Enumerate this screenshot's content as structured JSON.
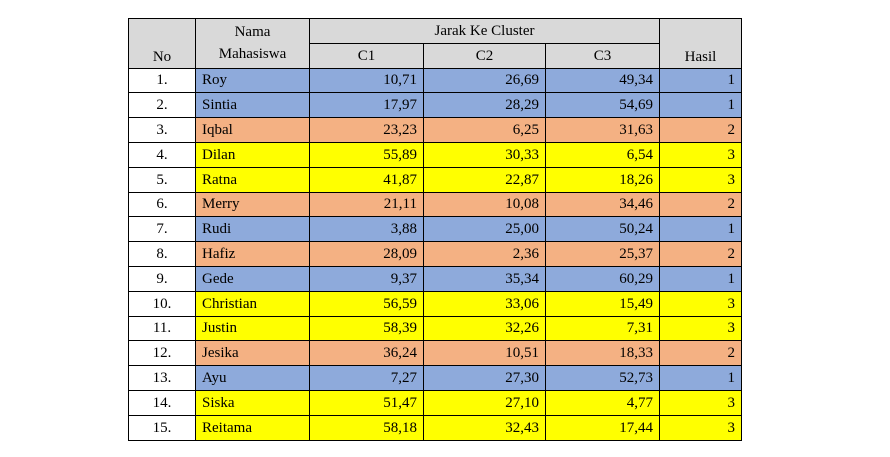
{
  "headers": {
    "no": "No",
    "nama_line1": "Nama",
    "nama_line2": "Mahasiswa",
    "group": "Jarak Ke Cluster",
    "c1": "C1",
    "c2": "C2",
    "c3": "C3",
    "hasil": "Hasil"
  },
  "cluster_colors": {
    "1": "#8eaadb",
    "2": "#f4b183",
    "3": "#ffff00"
  },
  "rows": [
    {
      "no": "1.",
      "nama": "Roy",
      "c1": "10,71",
      "c2": "26,69",
      "c3": "49,34",
      "hasil": "1"
    },
    {
      "no": "2.",
      "nama": "Sintia",
      "c1": "17,97",
      "c2": "28,29",
      "c3": "54,69",
      "hasil": "1"
    },
    {
      "no": "3.",
      "nama": "Iqbal",
      "c1": "23,23",
      "c2": "6,25",
      "c3": "31,63",
      "hasil": "2"
    },
    {
      "no": "4.",
      "nama": "Dilan",
      "c1": "55,89",
      "c2": "30,33",
      "c3": "6,54",
      "hasil": "3"
    },
    {
      "no": "5.",
      "nama": "Ratna",
      "c1": "41,87",
      "c2": "22,87",
      "c3": "18,26",
      "hasil": "3"
    },
    {
      "no": "6.",
      "nama": "Merry",
      "c1": "21,11",
      "c2": "10,08",
      "c3": "34,46",
      "hasil": "2"
    },
    {
      "no": "7.",
      "nama": "Rudi",
      "c1": "3,88",
      "c2": "25,00",
      "c3": "50,24",
      "hasil": "1"
    },
    {
      "no": "8.",
      "nama": "Hafiz",
      "c1": "28,09",
      "c2": "2,36",
      "c3": "25,37",
      "hasil": "2"
    },
    {
      "no": "9.",
      "nama": "Gede",
      "c1": "9,37",
      "c2": "35,34",
      "c3": "60,29",
      "hasil": "1"
    },
    {
      "no": "10.",
      "nama": "Christian",
      "c1": "56,59",
      "c2": "33,06",
      "c3": "15,49",
      "hasil": "3"
    },
    {
      "no": "11.",
      "nama": "Justin",
      "c1": "58,39",
      "c2": "32,26",
      "c3": "7,31",
      "hasil": "3"
    },
    {
      "no": "12.",
      "nama": "Jesika",
      "c1": "36,24",
      "c2": "10,51",
      "c3": "18,33",
      "hasil": "2"
    },
    {
      "no": "13.",
      "nama": "Ayu",
      "c1": "7,27",
      "c2": "27,30",
      "c3": "52,73",
      "hasil": "1"
    },
    {
      "no": "14.",
      "nama": "Siska",
      "c1": "51,47",
      "c2": "27,10",
      "c3": "4,77",
      "hasil": "3"
    },
    {
      "no": "15.",
      "nama": "Reitama",
      "c1": "58,18",
      "c2": "32,43",
      "c3": "17,44",
      "hasil": "3"
    }
  ]
}
